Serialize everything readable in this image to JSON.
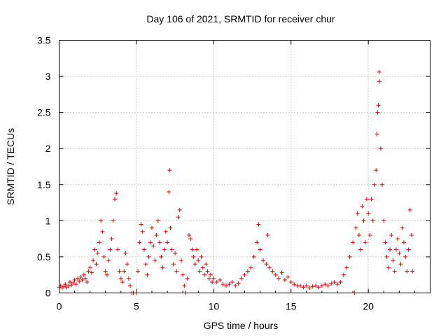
{
  "chart_data": {
    "type": "scatter",
    "title": "Day 106 of 2021, SRMTID for receiver chur",
    "xlabel": "GPS time / hours",
    "ylabel": "SRMTID / TECUs",
    "xlim": [
      0,
      24
    ],
    "ylim": [
      0,
      3.5
    ],
    "xticks": [
      0,
      5,
      10,
      15,
      20
    ],
    "xtick_labels": [
      "0",
      "5",
      "10",
      "15",
      "20"
    ],
    "yticks": [
      0,
      0.5,
      1,
      1.5,
      2,
      2.5,
      3,
      3.5
    ],
    "ytick_labels": [
      "0",
      "0.5",
      "1",
      "1.5",
      "2",
      "2.5",
      "3",
      "3.5"
    ],
    "grid": true,
    "marker": "+",
    "marker_color": "#e00000",
    "series": [
      {
        "name": "SRMTID",
        "points": [
          [
            0.0,
            0.08
          ],
          [
            0.1,
            0.1
          ],
          [
            0.2,
            0.07
          ],
          [
            0.3,
            0.09
          ],
          [
            0.4,
            0.12
          ],
          [
            0.5,
            0.08
          ],
          [
            0.6,
            0.1
          ],
          [
            0.7,
            0.15
          ],
          [
            0.8,
            0.11
          ],
          [
            0.9,
            0.14
          ],
          [
            1.0,
            0.18
          ],
          [
            1.1,
            0.12
          ],
          [
            1.2,
            0.2
          ],
          [
            1.3,
            0.16
          ],
          [
            1.4,
            0.22
          ],
          [
            1.5,
            0.18
          ],
          [
            1.6,
            0.25
          ],
          [
            1.7,
            0.2
          ],
          [
            1.8,
            0.15
          ],
          [
            1.9,
            0.3
          ],
          [
            2.0,
            0.35
          ],
          [
            2.1,
            0.28
          ],
          [
            2.2,
            0.45
          ],
          [
            2.3,
            0.6
          ],
          [
            2.4,
            0.4
          ],
          [
            2.5,
            0.55
          ],
          [
            2.6,
            0.7
          ],
          [
            2.7,
            1.0
          ],
          [
            2.8,
            0.85
          ],
          [
            2.9,
            0.5
          ],
          [
            3.0,
            0.3
          ],
          [
            3.1,
            0.25
          ],
          [
            3.2,
            0.45
          ],
          [
            3.3,
            0.6
          ],
          [
            3.4,
            0.75
          ],
          [
            3.5,
            1.0
          ],
          [
            3.6,
            1.3
          ],
          [
            3.7,
            1.38
          ],
          [
            3.8,
            0.6
          ],
          [
            3.9,
            0.3
          ],
          [
            4.0,
            0.2
          ],
          [
            4.1,
            0.15
          ],
          [
            4.2,
            0.3
          ],
          [
            4.3,
            0.55
          ],
          [
            4.4,
            0.4
          ],
          [
            4.5,
            0.2
          ],
          [
            4.6,
            0.1
          ],
          [
            4.7,
            0.0
          ],
          [
            4.8,
            0.0
          ],
          [
            5.0,
            0.0
          ],
          [
            5.1,
            0.3
          ],
          [
            5.2,
            0.7
          ],
          [
            5.3,
            0.95
          ],
          [
            5.4,
            0.85
          ],
          [
            5.5,
            0.6
          ],
          [
            5.6,
            0.4
          ],
          [
            5.7,
            0.25
          ],
          [
            5.8,
            0.5
          ],
          [
            5.9,
            0.7
          ],
          [
            6.0,
            0.9
          ],
          [
            6.1,
            0.65
          ],
          [
            6.2,
            0.45
          ],
          [
            6.3,
            0.8
          ],
          [
            6.4,
            1.0
          ],
          [
            6.5,
            0.7
          ],
          [
            6.6,
            0.5
          ],
          [
            6.7,
            0.35
          ],
          [
            6.8,
            0.6
          ],
          [
            6.9,
            0.85
          ],
          [
            7.0,
            0.7
          ],
          [
            7.1,
            1.4
          ],
          [
            7.15,
            1.7
          ],
          [
            7.2,
            0.9
          ],
          [
            7.3,
            0.6
          ],
          [
            7.4,
            0.4
          ],
          [
            7.5,
            0.55
          ],
          [
            7.6,
            0.3
          ],
          [
            7.7,
            1.05
          ],
          [
            7.8,
            1.15
          ],
          [
            7.9,
            0.45
          ],
          [
            8.0,
            0.25
          ],
          [
            8.1,
            0.1
          ],
          [
            8.2,
            0.0
          ],
          [
            8.3,
            0.2
          ],
          [
            8.4,
            0.8
          ],
          [
            8.5,
            0.75
          ],
          [
            8.6,
            0.6
          ],
          [
            8.7,
            0.5
          ],
          [
            8.8,
            0.4
          ],
          [
            8.9,
            0.6
          ],
          [
            9.0,
            0.45
          ],
          [
            9.1,
            0.3
          ],
          [
            9.2,
            0.5
          ],
          [
            9.3,
            0.35
          ],
          [
            9.4,
            0.25
          ],
          [
            9.5,
            0.4
          ],
          [
            9.6,
            0.3
          ],
          [
            9.7,
            0.2
          ],
          [
            9.8,
            0.25
          ],
          [
            9.9,
            0.15
          ],
          [
            10.0,
            0.2
          ],
          [
            10.2,
            0.15
          ],
          [
            10.4,
            0.18
          ],
          [
            10.6,
            0.12
          ],
          [
            10.8,
            0.1
          ],
          [
            11.0,
            0.12
          ],
          [
            11.2,
            0.15
          ],
          [
            11.4,
            0.1
          ],
          [
            11.6,
            0.13
          ],
          [
            11.8,
            0.2
          ],
          [
            12.0,
            0.25
          ],
          [
            12.2,
            0.3
          ],
          [
            12.4,
            0.35
          ],
          [
            12.6,
            0.5
          ],
          [
            12.8,
            0.7
          ],
          [
            12.9,
            0.95
          ],
          [
            13.0,
            0.6
          ],
          [
            13.2,
            0.45
          ],
          [
            13.4,
            0.4
          ],
          [
            13.5,
            0.8
          ],
          [
            13.6,
            0.35
          ],
          [
            13.8,
            0.3
          ],
          [
            14.0,
            0.25
          ],
          [
            14.2,
            0.2
          ],
          [
            14.4,
            0.28
          ],
          [
            14.6,
            0.18
          ],
          [
            14.8,
            0.22
          ],
          [
            15.0,
            0.15
          ],
          [
            15.2,
            0.12
          ],
          [
            15.4,
            0.1
          ],
          [
            15.6,
            0.1
          ],
          [
            15.8,
            0.08
          ],
          [
            16.0,
            0.1
          ],
          [
            16.2,
            0.07
          ],
          [
            16.4,
            0.09
          ],
          [
            16.6,
            0.1
          ],
          [
            16.8,
            0.08
          ],
          [
            17.0,
            0.1
          ],
          [
            17.2,
            0.12
          ],
          [
            17.4,
            0.1
          ],
          [
            17.6,
            0.13
          ],
          [
            17.8,
            0.15
          ],
          [
            18.0,
            0.12
          ],
          [
            18.2,
            0.15
          ],
          [
            18.4,
            0.25
          ],
          [
            18.6,
            0.35
          ],
          [
            18.8,
            0.5
          ],
          [
            19.0,
            0.7
          ],
          [
            19.1,
            0.0
          ],
          [
            19.2,
            0.9
          ],
          [
            19.3,
            1.1
          ],
          [
            19.4,
            0.8
          ],
          [
            19.5,
            0.6
          ],
          [
            19.6,
            1.2
          ],
          [
            19.7,
            1.0
          ],
          [
            19.8,
            0.7
          ],
          [
            19.9,
            1.3
          ],
          [
            20.0,
            1.1
          ],
          [
            20.1,
            0.8
          ],
          [
            20.2,
            1.3
          ],
          [
            20.3,
            1.0
          ],
          [
            20.4,
            1.5
          ],
          [
            20.5,
            1.7
          ],
          [
            20.55,
            2.2
          ],
          [
            20.6,
            2.5
          ],
          [
            20.65,
            2.6
          ],
          [
            20.7,
            3.06
          ],
          [
            20.72,
            2.93
          ],
          [
            20.8,
            2.0
          ],
          [
            20.9,
            1.5
          ],
          [
            21.0,
            1.0
          ],
          [
            21.1,
            0.7
          ],
          [
            21.2,
            0.5
          ],
          [
            21.3,
            0.35
          ],
          [
            21.4,
            0.6
          ],
          [
            21.5,
            0.8
          ],
          [
            21.6,
            0.45
          ],
          [
            21.7,
            0.3
          ],
          [
            21.8,
            0.6
          ],
          [
            21.9,
            0.75
          ],
          [
            22.0,
            0.55
          ],
          [
            22.1,
            0.4
          ],
          [
            22.2,
            0.9
          ],
          [
            22.3,
            0.7
          ],
          [
            22.4,
            0.5
          ],
          [
            22.5,
            0.3
          ],
          [
            22.6,
            0.6
          ],
          [
            22.7,
            1.15
          ],
          [
            22.8,
            0.8
          ],
          [
            22.85,
            0.3
          ]
        ]
      }
    ]
  }
}
